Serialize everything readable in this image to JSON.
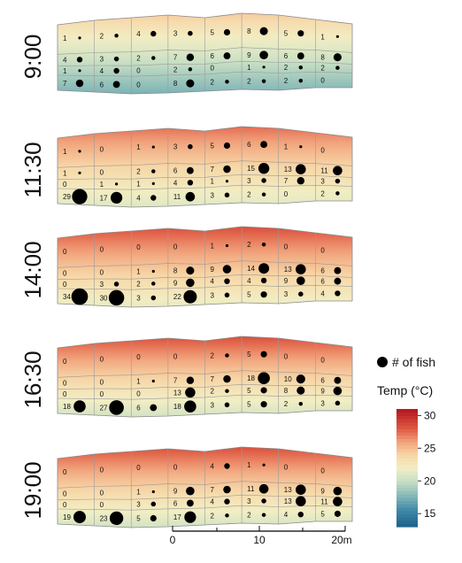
{
  "chart_data": {
    "type": "heatmap",
    "title": "",
    "panel_labels": [
      "9:00",
      "11:30",
      "14:00",
      "16:30",
      "19:00"
    ],
    "legend": {
      "fish_label": "# of fish",
      "temp_label": "Temp (°C)",
      "temp_ticks": [
        15,
        20,
        25,
        30
      ],
      "temp_range": [
        13,
        31
      ]
    },
    "scale_bar": {
      "ticks": [
        "0",
        "10",
        "20m"
      ]
    },
    "panels": [
      {
        "time": "9:00",
        "temp_top": 24.5,
        "temp_bottom": 17.5,
        "counts": [
          [
            1,
            2,
            4,
            3,
            5,
            8,
            5,
            1
          ],
          [
            4,
            3,
            2,
            7,
            6,
            9,
            6,
            8
          ],
          [
            1,
            4,
            0,
            2,
            0,
            1,
            2,
            2
          ],
          [
            7,
            6,
            0,
            8,
            2,
            2,
            2,
            0
          ]
        ]
      },
      {
        "time": "11:30",
        "temp_top": 27.5,
        "temp_bottom": 21.0,
        "counts": [
          [
            1,
            0,
            1,
            3,
            5,
            6,
            1,
            0
          ],
          [
            1,
            0,
            2,
            6,
            7,
            15,
            13,
            11
          ],
          [
            0,
            1,
            1,
            4,
            1,
            3,
            7,
            3
          ],
          [
            29,
            17,
            4,
            11,
            3,
            2,
            0,
            2
          ]
        ]
      },
      {
        "time": "14:00",
        "temp_top": 28.5,
        "temp_bottom": 21.5,
        "counts": [
          [
            0,
            0,
            0,
            0,
            1,
            2,
            0,
            0
          ],
          [
            0,
            0,
            1,
            8,
            9,
            14,
            13,
            6
          ],
          [
            0,
            3,
            2,
            9,
            4,
            4,
            9,
            6
          ],
          [
            34,
            30,
            3,
            22,
            3,
            5,
            3,
            4
          ]
        ]
      },
      {
        "time": "16:30",
        "temp_top": 28.5,
        "temp_bottom": 20.5,
        "counts": [
          [
            0,
            0,
            0,
            0,
            2,
            5,
            0,
            0
          ],
          [
            0,
            0,
            1,
            7,
            7,
            18,
            10,
            6
          ],
          [
            0,
            0,
            0,
            13,
            2,
            5,
            8,
            9
          ],
          [
            18,
            27,
            6,
            18,
            3,
            5,
            2,
            3
          ]
        ]
      },
      {
        "time": "19:00",
        "temp_top": 28.5,
        "temp_bottom": 20.5,
        "counts": [
          [
            0,
            0,
            0,
            0,
            4,
            1,
            0,
            0
          ],
          [
            0,
            0,
            1,
            9,
            7,
            11,
            13,
            9
          ],
          [
            0,
            0,
            3,
            6,
            4,
            3,
            13,
            11
          ],
          [
            19,
            23,
            5,
            17,
            2,
            2,
            4,
            5
          ]
        ]
      }
    ]
  }
}
